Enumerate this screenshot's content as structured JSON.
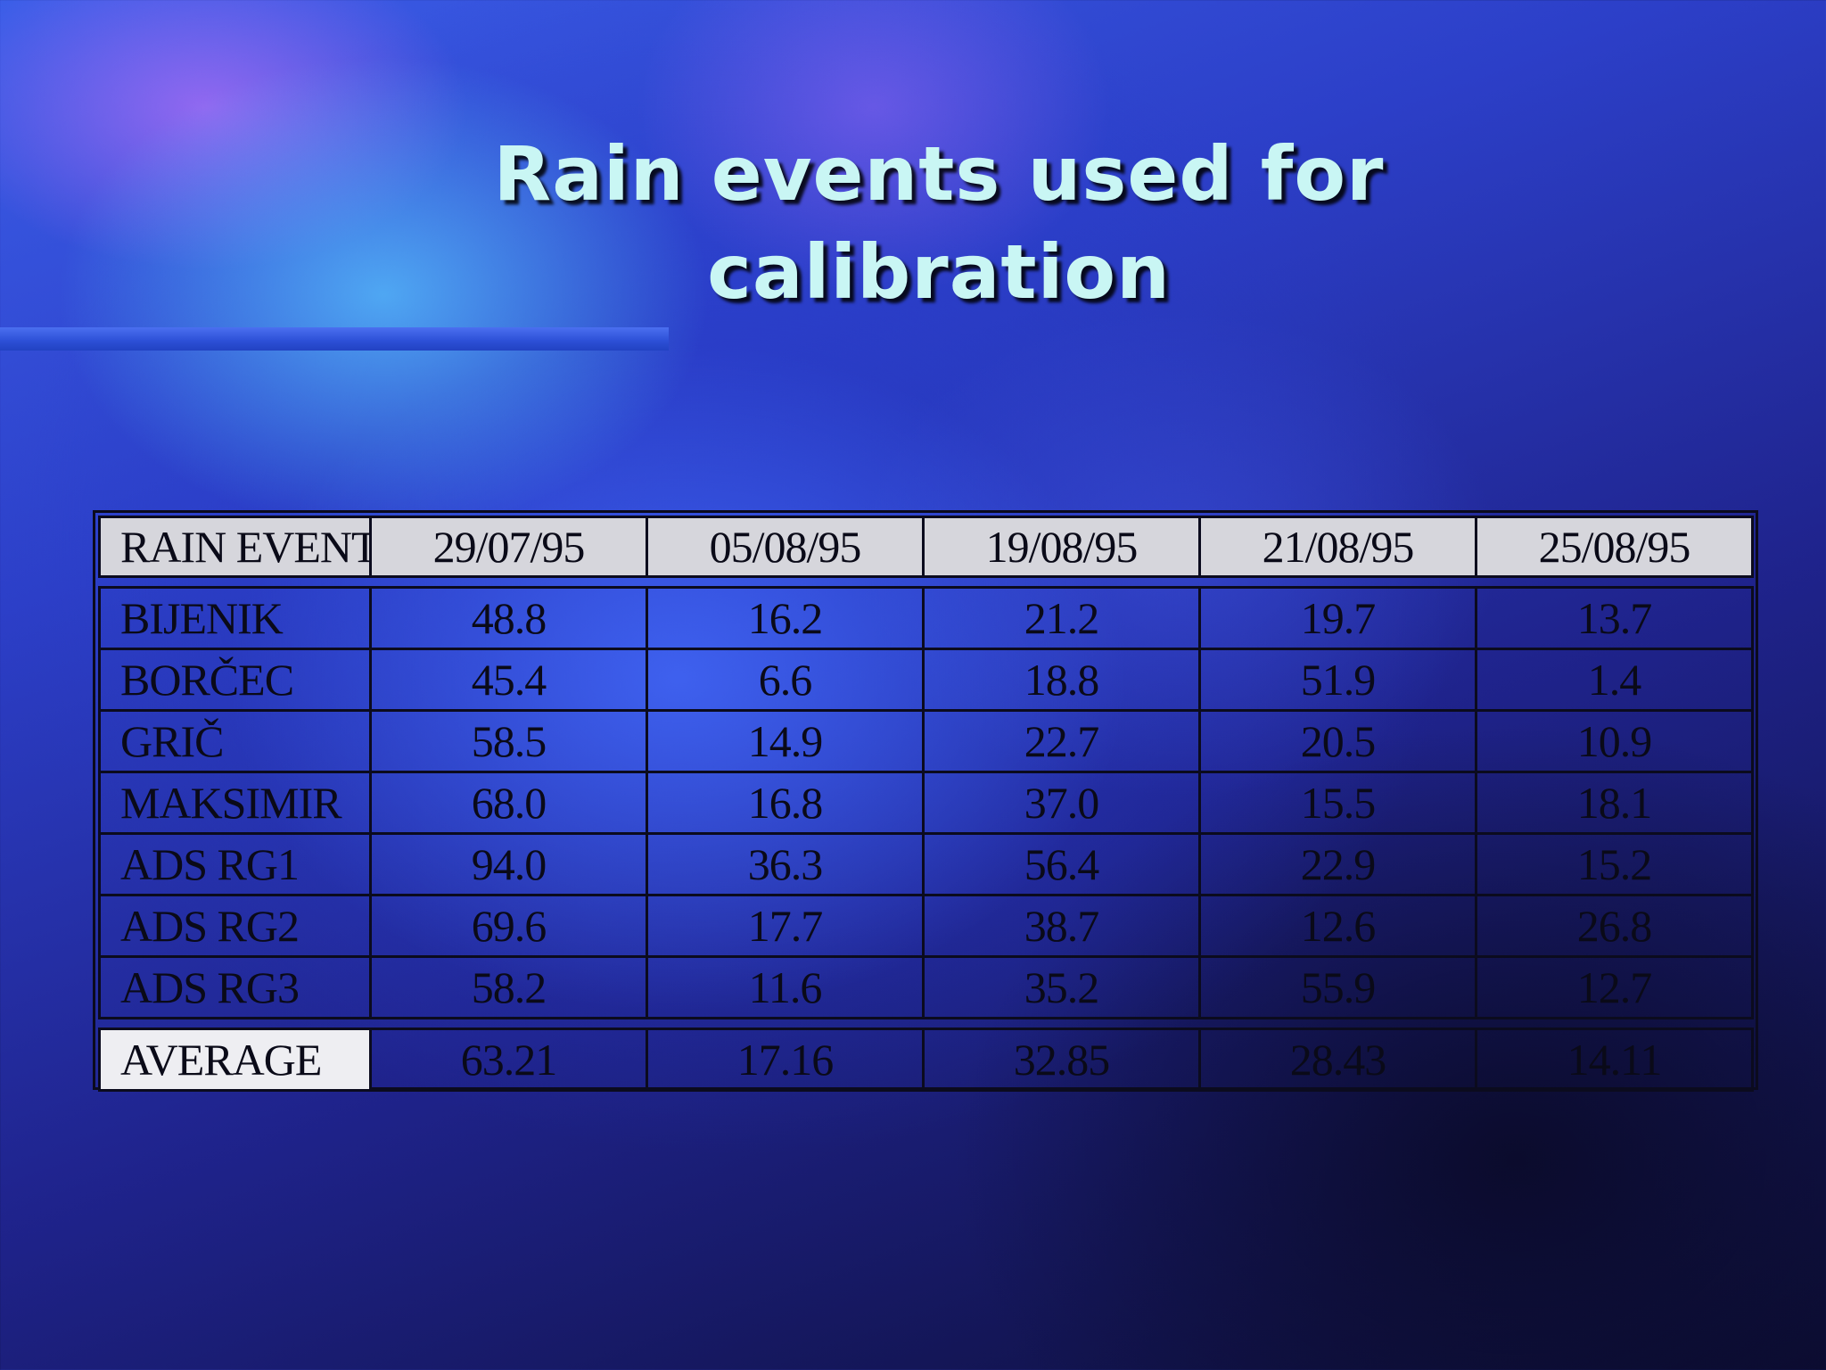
{
  "slide": {
    "title_line1": "Rain events used for",
    "title_line2": "calibration"
  },
  "table": {
    "corner_label": "RAIN EVENT",
    "columns": [
      "29/07/95",
      "05/08/95",
      "19/08/95",
      "21/08/95",
      "25/08/95"
    ],
    "rows": [
      {
        "station": "BIJENIK",
        "values": [
          "48.8",
          "16.2",
          "21.2",
          "19.7",
          "13.7"
        ]
      },
      {
        "station": "BORČEC",
        "values": [
          "45.4",
          "6.6",
          "18.8",
          "51.9",
          "1.4"
        ]
      },
      {
        "station": "GRIČ",
        "values": [
          "58.5",
          "14.9",
          "22.7",
          "20.5",
          "10.9"
        ]
      },
      {
        "station": "MAKSIMIR",
        "values": [
          "68.0",
          "16.8",
          "37.0",
          "15.5",
          "18.1"
        ]
      },
      {
        "station": "ADS RG1",
        "values": [
          "94.0",
          "36.3",
          "56.4",
          "22.9",
          "15.2"
        ]
      },
      {
        "station": "ADS RG2",
        "values": [
          "69.6",
          "17.7",
          "38.7",
          "12.6",
          "26.8"
        ]
      },
      {
        "station": "ADS RG3",
        "values": [
          "58.2",
          "11.6",
          "35.2",
          "55.9",
          "12.7"
        ]
      }
    ],
    "average": {
      "label": "AVERAGE",
      "values": [
        "63.21",
        "17.16",
        "32.85",
        "28.43",
        "14.11"
      ]
    }
  },
  "colors": {
    "title_text": "#c9f6f4",
    "header_fill": "#d6d6dc",
    "average_label_fill": "#eeeef2",
    "table_text": "#0a0a18",
    "background_deep": "#0c0d33",
    "background_light": "#3b5ee8"
  }
}
